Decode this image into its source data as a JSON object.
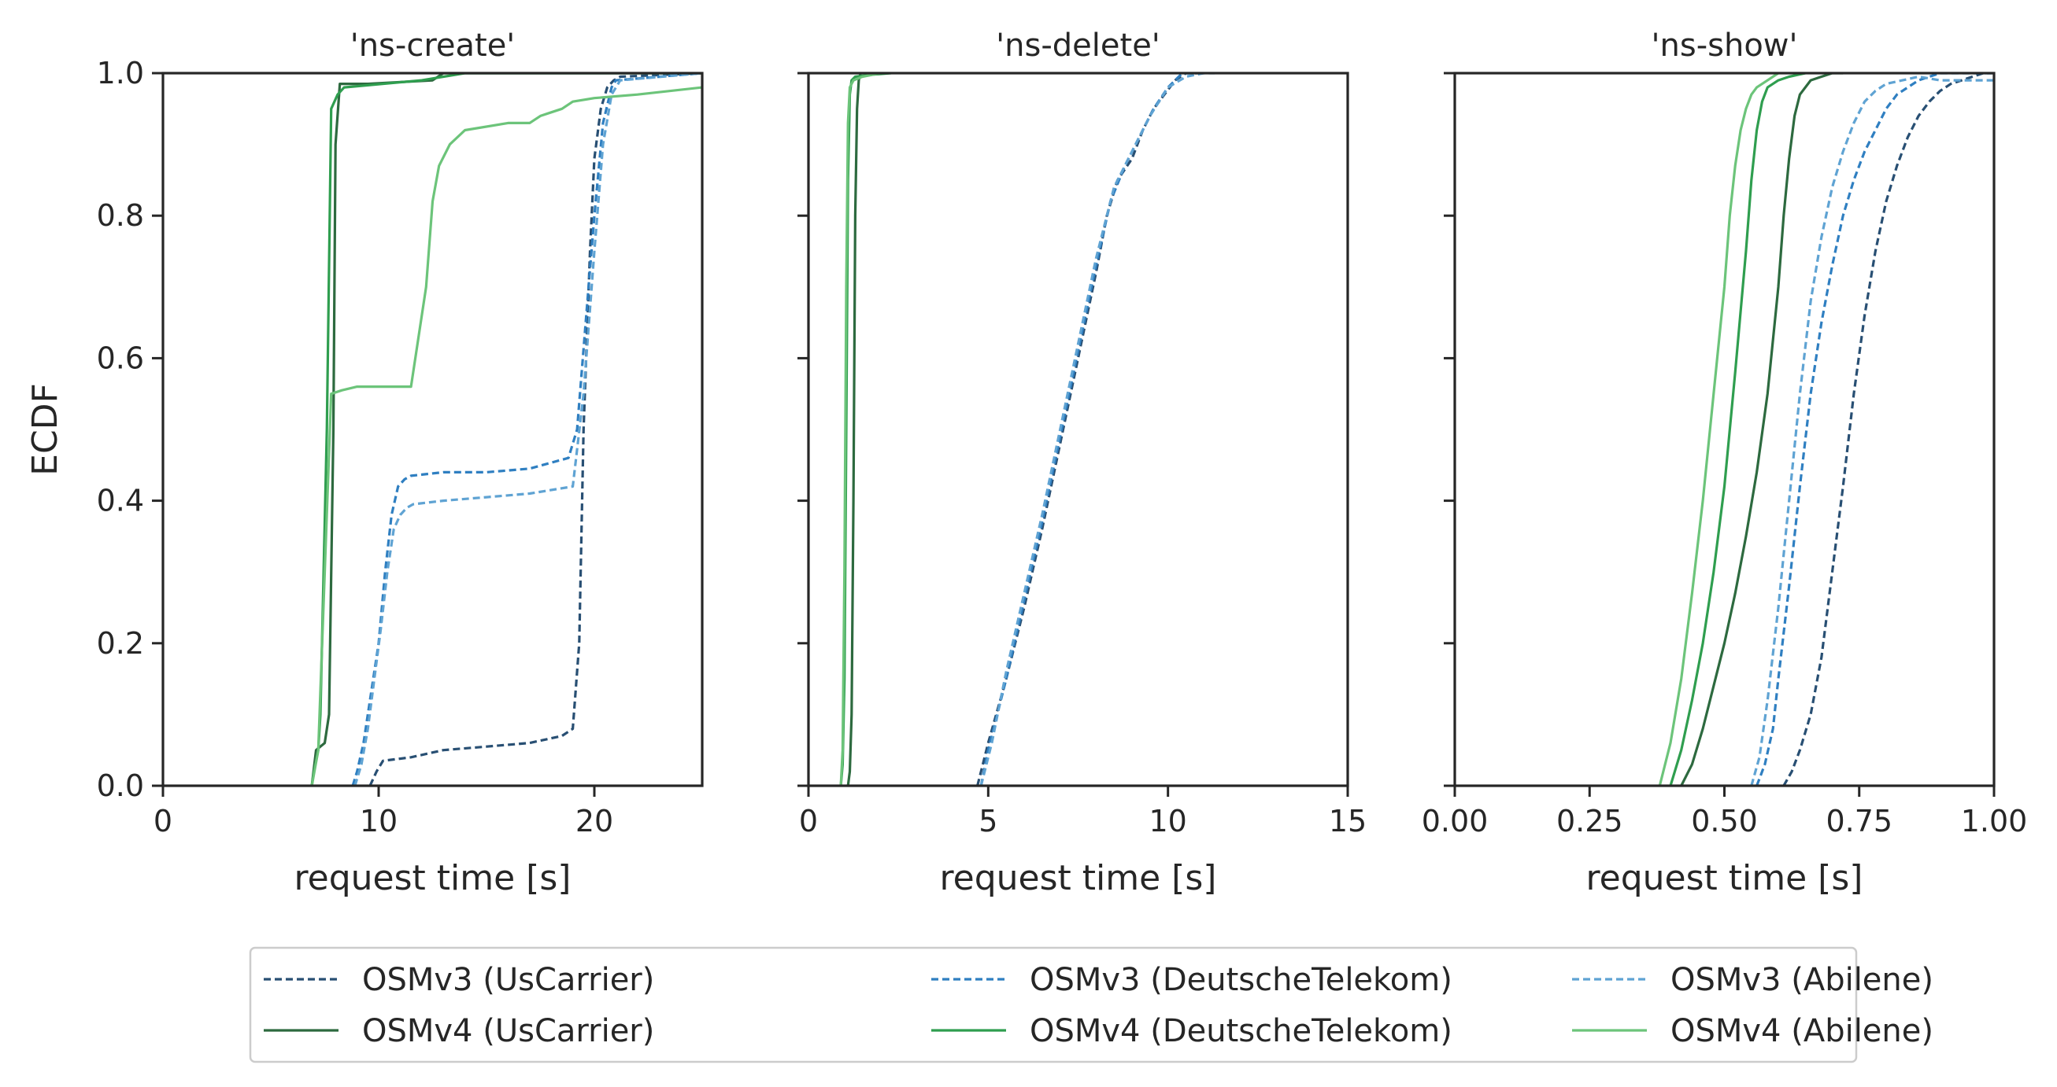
{
  "chart_data": [
    {
      "type": "line",
      "title": "'ns-create'",
      "xlabel": "request time [s]",
      "ylabel": "ECDF",
      "xlim": [
        0,
        25
      ],
      "ylim": [
        0,
        1
      ],
      "xticks": [
        0,
        10,
        20
      ],
      "yticks": [
        0.0,
        0.2,
        0.4,
        0.6,
        0.8,
        1.0
      ],
      "xtick_labels": [
        "0",
        "10",
        "20"
      ],
      "ytick_labels": [
        "0.0",
        "0.2",
        "0.4",
        "0.6",
        "0.8",
        "1.0"
      ],
      "grid": false,
      "series": [
        {
          "key": "v3us",
          "x": [
            9.6,
            9.9,
            10.2,
            11.5,
            13,
            15,
            17,
            18.5,
            19,
            19.3,
            19.5,
            19.8,
            20,
            20.3,
            20.6,
            20.9,
            21.2,
            25
          ],
          "y": [
            0,
            0.02,
            0.035,
            0.04,
            0.05,
            0.055,
            0.06,
            0.07,
            0.08,
            0.2,
            0.5,
            0.75,
            0.88,
            0.95,
            0.98,
            0.99,
            0.995,
            1.0
          ]
        },
        {
          "key": "v4us",
          "x": [
            6.9,
            7.1,
            7.5,
            7.7,
            7.9,
            8.0,
            8.2,
            9.5,
            12.5,
            13,
            25
          ],
          "y": [
            0,
            0.05,
            0.06,
            0.1,
            0.5,
            0.9,
            0.985,
            0.985,
            0.99,
            1.0,
            1.0
          ]
        },
        {
          "key": "v3dt",
          "x": [
            8.8,
            9.0,
            9.3,
            9.6,
            10.0,
            10.3,
            10.6,
            10.9,
            11.2,
            11.5,
            13,
            15,
            17,
            18.8,
            19.2,
            19.6,
            20.0,
            20.4,
            20.8,
            21,
            25
          ],
          "y": [
            0,
            0.02,
            0.06,
            0.12,
            0.2,
            0.3,
            0.38,
            0.42,
            0.43,
            0.435,
            0.44,
            0.44,
            0.445,
            0.46,
            0.5,
            0.65,
            0.8,
            0.93,
            0.98,
            0.99,
            1.0
          ]
        },
        {
          "key": "v4dt",
          "x": [
            6.9,
            7.0,
            7.2,
            7.3,
            7.6,
            7.8,
            8.1,
            8.4,
            12,
            14,
            25
          ],
          "y": [
            0,
            0.02,
            0.05,
            0.1,
            0.5,
            0.95,
            0.97,
            0.98,
            0.99,
            1.0,
            1.0
          ]
        },
        {
          "key": "v3ab",
          "x": [
            8.9,
            9.2,
            9.5,
            9.8,
            10.1,
            10.4,
            10.7,
            11.0,
            11.3,
            11.6,
            13,
            15,
            17,
            19,
            19.5,
            20,
            20.4,
            20.8,
            21.2,
            25
          ],
          "y": [
            0,
            0.03,
            0.08,
            0.15,
            0.22,
            0.3,
            0.36,
            0.38,
            0.39,
            0.395,
            0.4,
            0.405,
            0.41,
            0.42,
            0.55,
            0.75,
            0.9,
            0.97,
            0.99,
            1.0
          ]
        },
        {
          "key": "v4ab",
          "x": [
            6.9,
            7.2,
            7.5,
            7.8,
            8.3,
            9,
            10,
            11.5,
            12.2,
            12.5,
            12.8,
            13.3,
            14,
            16,
            17,
            17.5,
            18,
            18.5,
            19,
            20,
            22,
            25
          ],
          "y": [
            0,
            0.05,
            0.3,
            0.55,
            0.555,
            0.56,
            0.56,
            0.56,
            0.7,
            0.82,
            0.87,
            0.9,
            0.92,
            0.93,
            0.93,
            0.94,
            0.945,
            0.95,
            0.96,
            0.965,
            0.97,
            0.98
          ]
        }
      ]
    },
    {
      "type": "line",
      "title": "'ns-delete'",
      "xlabel": "request time [s]",
      "xlim": [
        0,
        15
      ],
      "ylim": [
        0,
        1
      ],
      "xticks": [
        0,
        5,
        10,
        15
      ],
      "yticks": [
        0.0,
        0.2,
        0.4,
        0.6,
        0.8,
        1.0
      ],
      "xtick_labels": [
        "0",
        "5",
        "10",
        "15"
      ],
      "grid": false,
      "series": [
        {
          "key": "v3us",
          "x": [
            4.7,
            4.8,
            5.0,
            5.5,
            6.0,
            6.5,
            7.0,
            7.5,
            8.0,
            8.3,
            8.6,
            9.0,
            9.3,
            9.6,
            9.9,
            10.2,
            10.5,
            10.8,
            11.0
          ],
          "y": [
            0,
            0.02,
            0.06,
            0.15,
            0.25,
            0.36,
            0.48,
            0.6,
            0.72,
            0.8,
            0.85,
            0.88,
            0.92,
            0.95,
            0.97,
            0.99,
            1.0,
            1.0,
            1.0
          ]
        },
        {
          "key": "v4us",
          "x": [
            1.1,
            1.15,
            1.2,
            1.25,
            1.3,
            1.35,
            1.4,
            1.45,
            1.6
          ],
          "y": [
            0,
            0.02,
            0.1,
            0.4,
            0.8,
            0.95,
            0.99,
            1.0,
            1.0
          ]
        },
        {
          "key": "v3dt",
          "x": [
            4.8,
            5.0,
            5.5,
            6.0,
            6.5,
            7.0,
            7.5,
            8.0,
            8.4,
            8.8,
            9.2,
            9.6,
            10.0,
            10.4,
            10.8
          ],
          "y": [
            0,
            0.05,
            0.15,
            0.26,
            0.37,
            0.49,
            0.61,
            0.73,
            0.82,
            0.87,
            0.91,
            0.95,
            0.98,
            1.0,
            1.0
          ]
        },
        {
          "key": "v4dt",
          "x": [
            0.9,
            0.95,
            1.0,
            1.05,
            1.1,
            1.15,
            1.2,
            1.3,
            1.8,
            2.3
          ],
          "y": [
            0,
            0.03,
            0.15,
            0.5,
            0.85,
            0.97,
            0.99,
            0.995,
            0.998,
            1.0
          ]
        },
        {
          "key": "v3ab",
          "x": [
            4.8,
            5.1,
            5.5,
            6.0,
            6.5,
            7.0,
            7.5,
            8.0,
            8.5,
            9.0,
            9.5,
            10.0,
            10.5,
            11.0,
            11.3
          ],
          "y": [
            0,
            0.06,
            0.16,
            0.27,
            0.38,
            0.5,
            0.62,
            0.74,
            0.84,
            0.89,
            0.94,
            0.98,
            0.995,
            1.0,
            1.0
          ]
        },
        {
          "key": "v4ab",
          "x": [
            0.9,
            0.95,
            1.0,
            1.05,
            1.1,
            1.15,
            1.25,
            1.5,
            2.0
          ],
          "y": [
            0,
            0.05,
            0.3,
            0.7,
            0.93,
            0.98,
            0.99,
            0.995,
            1.0
          ]
        }
      ]
    },
    {
      "type": "line",
      "title": "'ns-show'",
      "xlabel": "request time [s]",
      "xlim": [
        0,
        1
      ],
      "ylim": [
        0,
        1
      ],
      "xticks": [
        0.0,
        0.25,
        0.5,
        0.75,
        1.0
      ],
      "yticks": [
        0.0,
        0.2,
        0.4,
        0.6,
        0.8,
        1.0
      ],
      "xtick_labels": [
        "0.00",
        "0.25",
        "0.50",
        "0.75",
        "1.00"
      ],
      "grid": false,
      "series": [
        {
          "key": "v3us",
          "x": [
            0.61,
            0.625,
            0.64,
            0.66,
            0.68,
            0.7,
            0.72,
            0.74,
            0.76,
            0.78,
            0.8,
            0.82,
            0.84,
            0.86,
            0.88,
            0.9,
            0.92,
            0.94,
            0.96,
            0.98,
            1.0
          ],
          "y": [
            0,
            0.02,
            0.05,
            0.1,
            0.18,
            0.3,
            0.42,
            0.55,
            0.66,
            0.75,
            0.82,
            0.87,
            0.91,
            0.94,
            0.96,
            0.975,
            0.985,
            0.99,
            0.995,
            1.0,
            1.0
          ]
        },
        {
          "key": "v4us",
          "x": [
            0.42,
            0.44,
            0.46,
            0.48,
            0.5,
            0.52,
            0.54,
            0.56,
            0.58,
            0.6,
            0.61,
            0.62,
            0.63,
            0.64,
            0.66,
            0.68,
            0.7,
            0.72
          ],
          "y": [
            0,
            0.03,
            0.08,
            0.14,
            0.2,
            0.27,
            0.35,
            0.44,
            0.55,
            0.7,
            0.8,
            0.88,
            0.94,
            0.97,
            0.99,
            0.995,
            1.0,
            1.0
          ]
        },
        {
          "key": "v3dt",
          "x": [
            0.56,
            0.575,
            0.59,
            0.6,
            0.62,
            0.64,
            0.66,
            0.68,
            0.7,
            0.72,
            0.74,
            0.76,
            0.78,
            0.8,
            0.82,
            0.84,
            0.86,
            0.88,
            0.9,
            0.93,
            0.96,
            1.0
          ],
          "y": [
            0,
            0.03,
            0.08,
            0.15,
            0.28,
            0.42,
            0.55,
            0.65,
            0.73,
            0.8,
            0.85,
            0.89,
            0.92,
            0.95,
            0.97,
            0.98,
            0.99,
            0.995,
            1.0,
            1.0,
            1.0,
            1.0
          ]
        },
        {
          "key": "v4dt",
          "x": [
            0.4,
            0.42,
            0.44,
            0.46,
            0.48,
            0.5,
            0.52,
            0.54,
            0.55,
            0.56,
            0.57,
            0.58,
            0.6,
            0.62,
            0.65
          ],
          "y": [
            0,
            0.05,
            0.12,
            0.2,
            0.3,
            0.42,
            0.58,
            0.75,
            0.85,
            0.92,
            0.96,
            0.98,
            0.99,
            0.995,
            1.0
          ]
        },
        {
          "key": "v3ab",
          "x": [
            0.55,
            0.565,
            0.58,
            0.6,
            0.62,
            0.64,
            0.66,
            0.68,
            0.7,
            0.72,
            0.74,
            0.76,
            0.78,
            0.8,
            0.83,
            0.86,
            0.9,
            0.95,
            1.0
          ],
          "y": [
            0,
            0.04,
            0.12,
            0.25,
            0.4,
            0.55,
            0.68,
            0.77,
            0.84,
            0.89,
            0.93,
            0.96,
            0.975,
            0.985,
            0.99,
            0.995,
            0.99,
            0.99,
            0.99
          ]
        },
        {
          "key": "v4ab",
          "x": [
            0.38,
            0.4,
            0.42,
            0.44,
            0.46,
            0.48,
            0.5,
            0.51,
            0.52,
            0.53,
            0.54,
            0.55,
            0.56,
            0.58,
            0.6
          ],
          "y": [
            0,
            0.06,
            0.15,
            0.27,
            0.4,
            0.55,
            0.7,
            0.8,
            0.87,
            0.92,
            0.95,
            0.97,
            0.98,
            0.99,
            1.0
          ]
        }
      ]
    }
  ],
  "legend": {
    "placement": "bottom-center",
    "items": [
      {
        "key": "v3us",
        "label": "OSMv3 (UsCarrier)",
        "color": "#284f73",
        "dashed": true
      },
      {
        "key": "v4us",
        "label": "OSMv4 (UsCarrier)",
        "color": "#2d6a3f",
        "dashed": false
      },
      {
        "key": "v3dt",
        "label": "OSMv3 (DeutscheTelekom)",
        "color": "#2f7fc1",
        "dashed": true
      },
      {
        "key": "v4dt",
        "label": "OSMv4 (DeutscheTelekom)",
        "color": "#2f9e4f",
        "dashed": false
      },
      {
        "key": "v3ab",
        "label": "OSMv3 (Abilene)",
        "color": "#5fa3d3",
        "dashed": true
      },
      {
        "key": "v4ab",
        "label": "OSMv4 (Abilene)",
        "color": "#6cc47a",
        "dashed": false
      }
    ]
  }
}
